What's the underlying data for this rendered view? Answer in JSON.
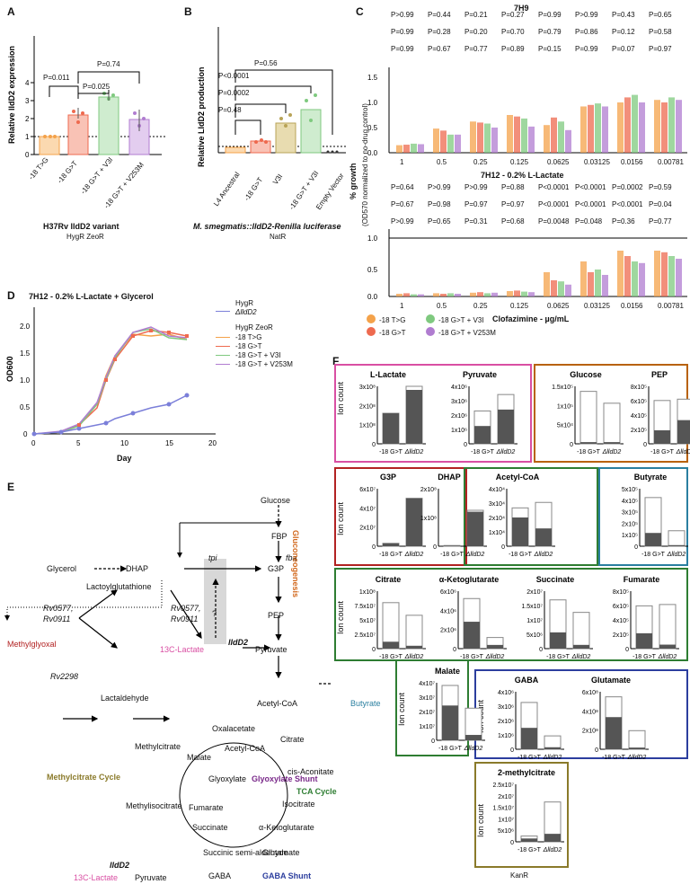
{
  "panel_labels": {
    "a": "A",
    "b": "B",
    "c": "C",
    "d": "D",
    "e": "E",
    "f": "F"
  },
  "colors": {
    "orange": "#f4a24a",
    "salmon": "#ee6a4f",
    "green": "#7fc97f",
    "purple": "#b07cd0",
    "blue": "#7b7fd9",
    "dark": "#5a5a5a",
    "pink": "#d94fa3",
    "red": "#b22222",
    "olive": "#8a7a2a",
    "teal": "#2a7fa0",
    "darkgreen": "#2e7d32",
    "navy": "#2c3e9e",
    "gluco": "#d2691e"
  },
  "panel_a": {
    "ylabel": "Relative lldD2 expression",
    "title": "H37Rv lldD2 variant",
    "markers": "HygR ZeoR",
    "categories": [
      "-18 T>G",
      "-18 G>T",
      "-18 G>T + V3I",
      "-18 G>T + V253M"
    ],
    "pvalues": [
      "P=0.011",
      "P=0.025",
      "P=0.74"
    ]
  },
  "panel_b": {
    "ylabel": "Relative LldD2 production",
    "title": "M. smegmatis::lldD2-Renilla luciferase",
    "markers": "NatR",
    "categories": [
      "L4 Ancestral",
      "-18 G>T",
      "V3I",
      "-18 G>T + V3I",
      "Empty Vector"
    ],
    "pvalues": [
      "P=0.48",
      "P=0.0002",
      "P<0.0001",
      "P=0.56"
    ]
  },
  "panel_c": {
    "title_top": "7H9",
    "title_bottom": "7H12 - 0.2% L-Lactate",
    "ylabel": "% growth",
    "ylabel2": "(OD570 normalized to no-drug control)",
    "xlabel": "Clofazimine - µg/mL",
    "concentrations": [
      "1",
      "0.5",
      "0.25",
      "0.125",
      "0.0625",
      "0.03125",
      "0.0156",
      "0.00781"
    ],
    "top_p_row1": [
      "P>0.99",
      "P=0.44",
      "P=0.21",
      "P=0.27",
      "P=0.99",
      "P>0.99",
      "P=0.43",
      "P=0.65"
    ],
    "top_p_row2": [
      "P=0.99",
      "P=0.28",
      "P=0.20",
      "P=0.70",
      "P=0.79",
      "P=0.86",
      "P=0.12",
      "P=0.58"
    ],
    "top_p_row3": [
      "P=0.99",
      "P=0.67",
      "P=0.77",
      "P=0.89",
      "P=0.15",
      "P=0.99",
      "P=0.07",
      "P=0.97"
    ],
    "bot_p_row1": [
      "P=0.64",
      "P>0.99",
      "P>0.99",
      "P=0.88",
      "P<0.0001",
      "P<0.0001",
      "P=0.0002",
      "P=0.59"
    ],
    "bot_p_row2": [
      "P=0.67",
      "P=0.98",
      "P=0.97",
      "P=0.97",
      "P<0.0001",
      "P<0.0001",
      "P<0.0001",
      "P=0.04"
    ],
    "bot_p_row3": [
      "P>0.99",
      "P=0.65",
      "P=0.31",
      "P=0.68",
      "P=0.0048",
      "P=0.048",
      "P=0.36",
      "P=0.77"
    ],
    "legend": [
      "-18 T>G",
      "-18 G>T + V3I",
      "-18 G>T",
      "-18 G>T + V253M"
    ]
  },
  "panel_d": {
    "title": "7H12 - 0.2% L-Lactate + Glycerol",
    "ylabel": "OD600",
    "xlabel": "Day",
    "legend_head1": "HygR",
    "legend_head2": "HygR ZeoR",
    "legend": [
      "ΔlldD2",
      "-18 T>G",
      "-18 G>T",
      "-18 G>T + V3I",
      "-18 G>T + V253M"
    ]
  },
  "panel_e": {
    "nodes": {
      "glucose": "Glucose",
      "fbp": "FBP",
      "fba": "fba",
      "glycerol": "Glycerol",
      "dhap": "DHAP",
      "tpi": "tpi",
      "g3p": "G3P",
      "gluconeogenesis": "Gluconeogenesis",
      "lactoyl": "Lactoylglutathione",
      "rv1a": "Rv0577,",
      "rv1b": "Rv0911",
      "rv2a": "Rv0577,",
      "rv2b": "Rv0911",
      "question": "?",
      "pep": "PEP",
      "methylglyoxal": "Methylglyoxal",
      "lactate13": "13C-Lactate",
      "lldd2": "lldD2",
      "pyruvate": "Pyruvate",
      "rv2298": "Rv2298",
      "lactaldehyde": "Lactaldehyde",
      "acetylcoa": "Acetyl-CoA",
      "butyrate": "Butyrate",
      "oxalacetate": "Oxalacetate",
      "citrate": "Citrate",
      "methylcitrate": "Methylcitrate",
      "malate": "Malate",
      "acetylcoa2": "Acetyl-CoA",
      "cisaconitate": "cis-Aconitate",
      "mcc": "Methylcitrate Cycle",
      "glyoxshunt": "Glyoxylate Shunt",
      "glyoxylate": "Glyoxylate",
      "tca": "TCA Cycle",
      "isocitrate": "Isocitrate",
      "methylisocitrate": "Methylisocitrate",
      "fumarate": "Fumarate",
      "succinate": "Succinate",
      "aketo": "α-Ketoglutarate",
      "succsemi": "Succinic semi-aldehyde",
      "glutamate": "Glutamate",
      "gaba": "GABA",
      "gabashunt": "GABA Shunt",
      "lldd2b": "lldD2",
      "lactate13b": "13C-Lactate",
      "pyruvate2": "Pyruvate"
    }
  },
  "panel_f": {
    "ylabel": "Ion count",
    "xcats": [
      "-18 G>T",
      "ΔlldD2"
    ],
    "marker": "KanR",
    "metabolites": [
      {
        "name": "L-Lactate",
        "ticks": [
          "3x10⁸",
          "2x10⁸",
          "1x10⁸",
          "0"
        ],
        "total": [
          1.7,
          3.2
        ],
        "labeled": [
          1.7,
          3.0
        ],
        "max": 3.2
      },
      {
        "name": "Pyruvate",
        "ticks": [
          "4x10⁶",
          "3x10⁶",
          "2x10⁶",
          "1x10⁶",
          "0"
        ],
        "total": [
          2.4,
          3.6
        ],
        "labeled": [
          1.3,
          2.5
        ],
        "max": 4.2
      },
      {
        "name": "Glucose",
        "ticks": [
          "1.5x10⁵",
          "1x10⁵",
          "5x10⁴",
          "0"
        ],
        "total": [
          1.55,
          1.2
        ],
        "labeled": [
          0.05,
          0.05
        ],
        "max": 1.7
      },
      {
        "name": "PEP",
        "ticks": [
          "8x10⁵",
          "6x10⁵",
          "4x10⁵",
          "2x10⁵",
          "0"
        ],
        "total": [
          6.4,
          6.6
        ],
        "labeled": [
          2.0,
          3.5
        ],
        "max": 8.5
      },
      {
        "name": "G3P",
        "ticks": [
          "6x10⁷",
          "4x10⁷",
          "2x10⁷",
          "0"
        ],
        "total": [
          0.3,
          5.0
        ],
        "labeled": [
          0.3,
          5.0
        ],
        "max": 6.0
      },
      {
        "name": "DHAP",
        "ticks": [
          "2x10⁸",
          "1x10⁸",
          "0"
        ],
        "total": [
          0.05,
          2.5
        ],
        "labeled": [
          0.03,
          2.4
        ],
        "max": 4.0
      },
      {
        "name": "Acetyl-CoA",
        "ticks": [
          "4x10⁴",
          "3x10⁴",
          "2x10⁴",
          "1x10⁴",
          "0"
        ],
        "total": [
          2.8,
          3.2
        ],
        "labeled": [
          2.1,
          1.3
        ],
        "max": 4.2
      },
      {
        "name": "Butyrate",
        "ticks": [
          "5x10⁵",
          "4x10⁵",
          "3x10⁵",
          "2x10⁵",
          "1x10⁵",
          "0"
        ],
        "total": [
          4.4,
          1.4
        ],
        "labeled": [
          1.2,
          0.1
        ],
        "max": 5.2
      },
      {
        "name": "Citrate",
        "ticks": [
          "1x10⁸",
          "7.5x10⁷",
          "5x10⁷",
          "2.5x10⁷",
          "0"
        ],
        "total": [
          8.0,
          5.8
        ],
        "labeled": [
          1.2,
          0.5
        ],
        "max": 10
      },
      {
        "name": "α-Ketoglutarate",
        "ticks": [
          "6x10⁶",
          "4x10⁶",
          "2x10⁶",
          "0"
        ],
        "total": [
          5.4,
          1.2
        ],
        "labeled": [
          2.9,
          0.4
        ],
        "max": 6.2
      },
      {
        "name": "Succinate",
        "ticks": [
          "2x10⁷",
          "1.5x10⁷",
          "1x10⁷",
          "5x10⁶",
          "0"
        ],
        "total": [
          1.95,
          1.45
        ],
        "labeled": [
          0.65,
          0.15
        ],
        "max": 2.3
      },
      {
        "name": "Fumarate",
        "ticks": [
          "8x10⁵",
          "6x10⁵",
          "4x10⁵",
          "2x10⁵",
          "0"
        ],
        "total": [
          6.4,
          6.6
        ],
        "labeled": [
          2.3,
          0.6
        ],
        "max": 8.6
      },
      {
        "name": "Malate",
        "ticks": [
          "4x10⁷",
          "3x10⁷",
          "2x10⁷",
          "1x10⁷",
          "0"
        ],
        "total": [
          4.1,
          2.4
        ],
        "labeled": [
          2.6,
          0.4
        ],
        "max": 4.3
      },
      {
        "name": "GABA",
        "ticks": [
          "4x10⁶",
          "3x10⁶",
          "2x10⁶",
          "1x10⁶",
          "0"
        ],
        "total": [
          3.5,
          1.0
        ],
        "labeled": [
          1.6,
          0.15
        ],
        "max": 4.3
      },
      {
        "name": "Glutamate",
        "ticks": [
          "6x10⁸",
          "4x10⁸",
          "2x10⁸",
          "0"
        ],
        "total": [
          6.2,
          2.2
        ],
        "labeled": [
          3.8,
          0.2
        ],
        "max": 6.8
      },
      {
        "name": "2-methylcitrate",
        "ticks": [
          "2.5x10⁷",
          "2x10⁷",
          "1.5x10⁷",
          "1x10⁷",
          "5x10⁶",
          "0"
        ],
        "total": [
          2.6,
          18.0
        ],
        "labeled": [
          1.5,
          3.6
        ],
        "max": 26
      }
    ]
  }
}
